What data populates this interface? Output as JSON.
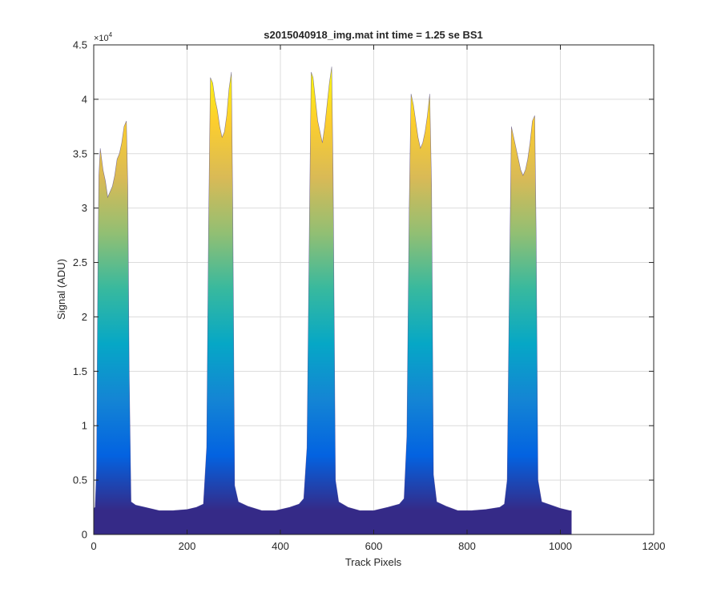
{
  "chart_data": {
    "type": "area",
    "title": "s2015040918_img.mat int time = 1.25 se   BS1",
    "xlabel": "Track Pixels",
    "ylabel": "Signal (ADU)",
    "y_exponent_label": "×10",
    "y_exponent_power": "4",
    "xlim": [
      0,
      1200
    ],
    "ylim": [
      0,
      4.5
    ],
    "y_scale_factor": 10000,
    "grid": true,
    "x_ticks": [
      "0",
      "200",
      "400",
      "600",
      "800",
      "1000",
      "1200"
    ],
    "y_ticks": [
      "0",
      "0.5",
      "1",
      "1.5",
      "2",
      "2.5",
      "3",
      "3.5",
      "4",
      "4.5"
    ],
    "colormap": [
      "#352a87",
      "#0363e1",
      "#1485d4",
      "#06a7c6",
      "#38b99e",
      "#92bf73",
      "#d9ba56",
      "#fcce2e",
      "#f9fb0e"
    ],
    "series": [
      {
        "x": [
          0,
          3,
          6,
          9,
          11,
          14,
          17,
          20,
          25,
          30,
          35,
          40,
          45,
          50,
          55,
          60,
          65,
          70,
          73,
          76,
          80,
          90,
          110,
          140,
          170,
          200,
          220,
          235,
          242,
          246,
          250,
          255,
          260,
          265,
          270,
          275,
          280,
          285,
          290,
          295,
          298,
          302,
          310,
          330,
          360,
          390,
          420,
          440,
          450,
          457,
          462,
          466,
          470,
          475,
          480,
          485,
          490,
          495,
          500,
          505,
          510,
          513,
          518,
          525,
          545,
          570,
          600,
          630,
          655,
          665,
          671,
          676,
          680,
          685,
          690,
          695,
          700,
          705,
          710,
          715,
          720,
          724,
          728,
          735,
          755,
          780,
          810,
          840,
          870,
          880,
          886,
          891,
          895,
          900,
          905,
          910,
          915,
          920,
          925,
          930,
          935,
          940,
          945,
          948,
          952,
          960,
          980,
          1000,
          1020,
          1024
        ],
        "y": [
          0.24,
          0.25,
          0.6,
          2.5,
          3.3,
          3.55,
          3.45,
          3.35,
          3.25,
          3.1,
          3.15,
          3.2,
          3.3,
          3.45,
          3.5,
          3.6,
          3.75,
          3.8,
          3.2,
          1.5,
          0.3,
          0.27,
          0.25,
          0.22,
          0.22,
          0.23,
          0.25,
          0.28,
          0.8,
          2.8,
          4.2,
          4.15,
          4.0,
          3.9,
          3.75,
          3.65,
          3.7,
          3.85,
          4.1,
          4.25,
          3.0,
          0.45,
          0.3,
          0.26,
          0.22,
          0.22,
          0.25,
          0.28,
          0.33,
          0.8,
          2.8,
          4.25,
          4.2,
          4.0,
          3.8,
          3.7,
          3.6,
          3.75,
          3.95,
          4.15,
          4.3,
          3.3,
          0.5,
          0.3,
          0.25,
          0.22,
          0.22,
          0.25,
          0.28,
          0.33,
          0.9,
          3.0,
          4.05,
          3.95,
          3.8,
          3.65,
          3.55,
          3.6,
          3.7,
          3.85,
          4.05,
          3.2,
          0.55,
          0.3,
          0.26,
          0.22,
          0.22,
          0.23,
          0.25,
          0.28,
          0.5,
          2.4,
          3.75,
          3.65,
          3.55,
          3.45,
          3.35,
          3.3,
          3.35,
          3.45,
          3.6,
          3.8,
          3.85,
          2.8,
          0.5,
          0.3,
          0.27,
          0.24,
          0.22,
          0.22
        ]
      }
    ]
  }
}
